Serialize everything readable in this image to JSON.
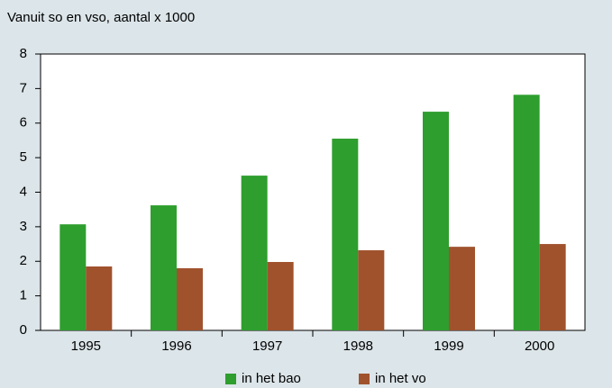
{
  "chart_data": {
    "type": "bar",
    "title": "Vanuit so en vso, aantal x 1000",
    "categories": [
      "1995",
      "1996",
      "1997",
      "1998",
      "1999",
      "2000"
    ],
    "series": [
      {
        "name": "in het bao",
        "color": "#2e9e2e",
        "values": [
          3.07,
          3.62,
          4.48,
          5.55,
          6.33,
          6.82
        ]
      },
      {
        "name": "in het vo",
        "color": "#a0522d",
        "values": [
          1.85,
          1.8,
          1.98,
          2.32,
          2.42,
          2.5
        ]
      }
    ],
    "ylim": [
      0,
      8
    ],
    "yticks": [
      0,
      1,
      2,
      3,
      4,
      5,
      6,
      7,
      8
    ],
    "grid": false,
    "legend": "bottom"
  }
}
